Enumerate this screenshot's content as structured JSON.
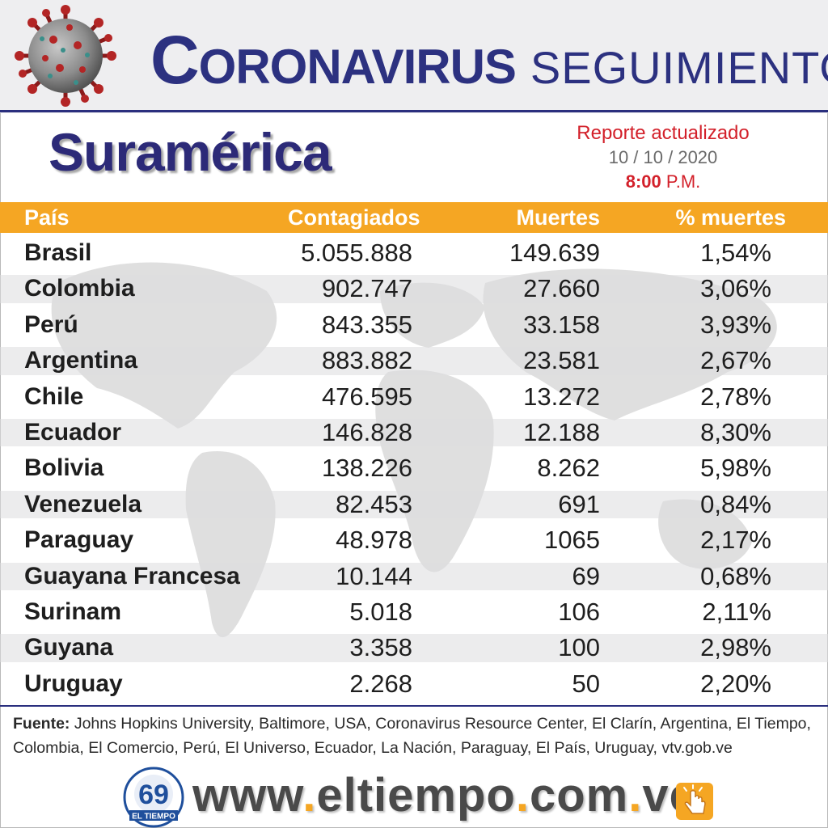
{
  "header": {
    "title_part1_cap": "C",
    "title_part1_rest": "ORONAVIRUS",
    "title_part2": "SEGUIMIENTO",
    "region": "Suramérica"
  },
  "report": {
    "label": "Reporte actualizado",
    "date": "10 / 10 / 2020",
    "time": "8:00",
    "period": "P.M."
  },
  "table": {
    "columns": [
      "País",
      "Contagiados",
      "Muertes",
      "% muertes"
    ],
    "rows": [
      {
        "country": "Brasil",
        "cases": "5.055.888",
        "deaths": "149.639",
        "pct": "1,54%"
      },
      {
        "country": "Colombia",
        "cases": "902.747",
        "deaths": "27.660",
        "pct": "3,06%"
      },
      {
        "country": "Perú",
        "cases": "843.355",
        "deaths": "33.158",
        "pct": "3,93%"
      },
      {
        "country": "Argentina",
        "cases": "883.882",
        "deaths": "23.581",
        "pct": "2,67%"
      },
      {
        "country": "Chile",
        "cases": "476.595",
        "deaths": "13.272",
        "pct": "2,78%"
      },
      {
        "country": "Ecuador",
        "cases": "146.828",
        "deaths": "12.188",
        "pct": "8,30%"
      },
      {
        "country": "Bolivia",
        "cases": "138.226",
        "deaths": "8.262",
        "pct": "5,98%"
      },
      {
        "country": "Venezuela",
        "cases": "82.453",
        "deaths": "691",
        "pct": "0,84%"
      },
      {
        "country": "Paraguay",
        "cases": "48.978",
        "deaths": "1065",
        "pct": "2,17%"
      },
      {
        "country": "Guayana Francesa",
        "cases": "10.144",
        "deaths": "69",
        "pct": "0,68%"
      },
      {
        "country": "Surinam",
        "cases": "5.018",
        "deaths": "106",
        "pct": "2,11%"
      },
      {
        "country": "Guyana",
        "cases": "3.358",
        "deaths": "100",
        "pct": "2,98%"
      },
      {
        "country": "Uruguay",
        "cases": "2.268",
        "deaths": "50",
        "pct": "2,20%"
      }
    ]
  },
  "source": {
    "label": "Fuente:",
    "text": " Johns Hopkins University, Baltimore, USA, Coronavirus Resource Center,  El Clarín, Argentina, El Tiempo, Colombia, El Comercio, Perú, El Universo, Ecuador, La Nación, Paraguay, El País, Uruguay, vtv.gob.ve"
  },
  "footer": {
    "url_parts": [
      "www",
      ".",
      "eltiempo",
      ".",
      "com",
      ".",
      "ve"
    ],
    "logo_number": "69",
    "logo_text": "EL TIEMPO"
  },
  "colors": {
    "brand_blue": "#2c3180",
    "header_orange": "#f5a623",
    "report_red": "#d3202a"
  },
  "icons": [
    "coronavirus-icon",
    "world-map-background",
    "el-tiempo-69-logo",
    "hand-pointer-icon"
  ]
}
